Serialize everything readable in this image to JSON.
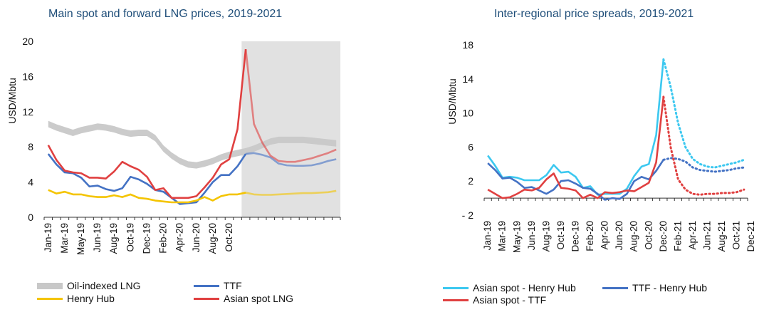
{
  "chart_data": [
    {
      "type": "line",
      "title": "Main spot and forward LNG prices, 2019-2021",
      "ylabel": "USD/Mbtu",
      "xlabel": "",
      "ylim": [
        0,
        20
      ],
      "yticks": [
        0,
        4,
        8,
        12,
        16,
        20
      ],
      "x_labels": [
        "Jan-19",
        "Mar-19",
        "May-19",
        "Jun-19",
        "Aug-19",
        "Oct-19",
        "Dec-19",
        "Feb-20",
        "Apr-20",
        "Jun-20",
        "Aug-20",
        "Oct-20",
        "Dec-20",
        "Feb-21",
        "Apr-21",
        "Jun-21",
        "Aug-21",
        "Oct-21",
        "Dec-21"
      ],
      "forecast_from_month_index": 24,
      "series": [
        {
          "name": "Oil-indexed LNG",
          "color": "#c8c8c8",
          "style": "band",
          "values": [
            10.6,
            10.2,
            9.9,
            9.6,
            9.9,
            10.1,
            10.3,
            10.2,
            10.0,
            9.7,
            9.5,
            9.6,
            9.6,
            9.0,
            7.8,
            7.0,
            6.4,
            6.0,
            5.9,
            6.1,
            6.4,
            6.8,
            7.1,
            7.3,
            7.5,
            7.8,
            8.2,
            8.6,
            8.8,
            8.8,
            8.8,
            8.8,
            8.7,
            8.6,
            8.5,
            8.4
          ]
        },
        {
          "name": "TTF",
          "color": "#4472c4",
          "style": "solid",
          "values": [
            7.2,
            6.0,
            5.1,
            5.0,
            4.5,
            3.5,
            3.6,
            3.2,
            3.0,
            3.3,
            4.6,
            4.3,
            3.8,
            3.1,
            2.9,
            2.2,
            1.5,
            1.6,
            1.7,
            2.8,
            4.0,
            4.8,
            4.8,
            5.8,
            7.2,
            7.3,
            7.1,
            6.8,
            6.1,
            5.9,
            5.85,
            5.85,
            5.9,
            6.1,
            6.4,
            6.6
          ]
        },
        {
          "name": "Henry Hub",
          "color": "#f4c400",
          "style": "solid",
          "values": [
            3.1,
            2.7,
            2.9,
            2.6,
            2.6,
            2.4,
            2.3,
            2.3,
            2.5,
            2.3,
            2.6,
            2.2,
            2.1,
            1.9,
            1.8,
            1.7,
            1.7,
            1.7,
            1.9,
            2.3,
            1.9,
            2.4,
            2.6,
            2.6,
            2.8,
            2.6,
            2.55,
            2.55,
            2.6,
            2.65,
            2.7,
            2.75,
            2.75,
            2.8,
            2.85,
            3.0
          ]
        },
        {
          "name": "Asian spot LNG",
          "color": "#e04040",
          "style": "solid",
          "values": [
            8.2,
            6.5,
            5.3,
            5.1,
            5.0,
            4.5,
            4.5,
            4.4,
            5.2,
            6.3,
            5.8,
            5.4,
            4.6,
            3.1,
            3.3,
            2.2,
            2.2,
            2.2,
            2.4,
            3.4,
            4.5,
            6.0,
            6.6,
            10.0,
            19.1,
            10.6,
            8.5,
            7.0,
            6.4,
            6.3,
            6.3,
            6.5,
            6.7,
            7.0,
            7.3,
            7.7
          ]
        }
      ],
      "legend": [
        "Oil-indexed LNG",
        "TTF",
        "Henry Hub",
        "Asian spot LNG"
      ]
    },
    {
      "type": "line",
      "title": "Inter-regional price spreads, 2019-2021",
      "ylabel": "USD/Mbtu",
      "xlabel": "",
      "ylim": [
        -2,
        18
      ],
      "yticks": [
        -2,
        2,
        6,
        10,
        14,
        18
      ],
      "ytick_labels": [
        "- 2",
        "2",
        "6",
        "10",
        "14",
        "18"
      ],
      "x_labels": [
        "Jan-19",
        "Mar-19",
        "May-19",
        "Jun-19",
        "Aug-19",
        "Oct-19",
        "Dec-19",
        "Feb-20",
        "Apr-20",
        "Jun-20",
        "Aug-20",
        "Oct-20",
        "Dec-20",
        "Feb-21",
        "Apr-21",
        "Jun-21",
        "Aug-21",
        "Oct-21",
        "Dec-21"
      ],
      "forecast_from_month_index": 24,
      "series": [
        {
          "name": "Asian spot - Henry Hub",
          "color": "#3cc8f0",
          "values": [
            5.0,
            3.8,
            2.4,
            2.5,
            2.4,
            2.1,
            2.1,
            2.1,
            2.7,
            3.9,
            3.0,
            3.1,
            2.5,
            1.2,
            1.4,
            0.4,
            0.5,
            0.5,
            0.5,
            1.1,
            2.6,
            3.7,
            4.0,
            7.4,
            16.3,
            13.0,
            8.8,
            6.0,
            4.6,
            4.0,
            3.7,
            3.6,
            3.8,
            4.0,
            4.2,
            4.5
          ]
        },
        {
          "name": "TTF - Henry Hub",
          "color": "#4472c4",
          "values": [
            4.1,
            3.3,
            2.3,
            2.4,
            1.9,
            1.2,
            1.3,
            0.9,
            0.5,
            1.0,
            2.0,
            2.1,
            1.7,
            1.2,
            1.1,
            0.5,
            -0.2,
            0.0,
            -0.1,
            0.5,
            2.0,
            2.5,
            2.2,
            3.2,
            4.5,
            4.7,
            4.6,
            4.3,
            3.6,
            3.3,
            3.2,
            3.1,
            3.2,
            3.3,
            3.5,
            3.6
          ]
        },
        {
          "name": "Asian spot - TTF",
          "color": "#e04040",
          "values": [
            1.0,
            0.5,
            0.0,
            0.1,
            0.5,
            1.0,
            0.9,
            1.2,
            2.2,
            2.9,
            1.2,
            1.1,
            0.9,
            0.0,
            0.4,
            0.0,
            0.7,
            0.6,
            0.7,
            0.9,
            0.8,
            1.3,
            1.8,
            4.2,
            11.9,
            5.9,
            2.2,
            1.0,
            0.5,
            0.4,
            0.5,
            0.5,
            0.6,
            0.6,
            0.7,
            1.0
          ]
        }
      ],
      "legend": [
        "Asian spot - Henry Hub",
        "TTF - Henry Hub",
        "Asian spot - TTF"
      ]
    }
  ]
}
